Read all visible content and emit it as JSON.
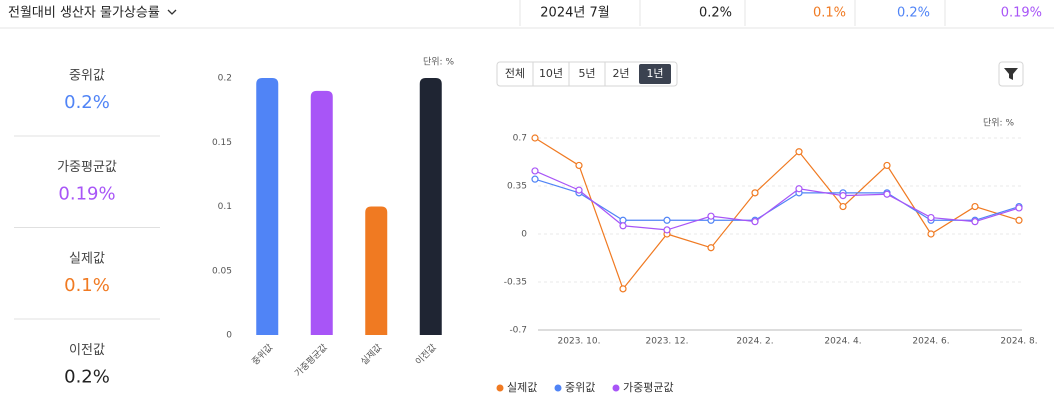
{
  "header": {
    "title": "전월대비 생산자 물가상승률",
    "period": "2024년 7월",
    "values": [
      "0.2%",
      "0.1%",
      "0.2%",
      "0.19%"
    ]
  },
  "stats": [
    {
      "label": "중위값",
      "value": "0.2%"
    },
    {
      "label": "가중평균값",
      "value": "0.19%"
    },
    {
      "label": "실제값",
      "value": "0.1%"
    },
    {
      "label": "이전값",
      "value": "0.2%"
    }
  ],
  "controls": {
    "ranges": [
      "전체",
      "10년",
      "5년",
      "2년",
      "1년"
    ],
    "selected": 4
  },
  "chart_data": [
    {
      "type": "bar",
      "unit_label": "단위: %",
      "categories": [
        "중위값",
        "가중평균값",
        "실제값",
        "이전값"
      ],
      "values": [
        0.2,
        0.19,
        0.1,
        0.2
      ],
      "colors": [
        "#5084f6",
        "#a855f7",
        "#f07a22",
        "#1f2533"
      ],
      "ylim": [
        0,
        0.2
      ],
      "yticks": [
        0,
        0.05,
        0.1,
        0.15,
        0.2
      ]
    },
    {
      "type": "line",
      "unit_label": "단위: %",
      "categories": [
        null,
        "2023. 10.",
        null,
        "2023. 12.",
        null,
        "2024. 2.",
        null,
        "2024. 4.",
        null,
        "2024. 6.",
        null,
        "2024. 8."
      ],
      "series": [
        {
          "name": "실제값",
          "color": "#f07a22",
          "values": [
            0.7,
            0.5,
            -0.4,
            0,
            -0.1,
            0.3,
            0.6,
            0.2,
            0.5,
            0,
            0.2,
            0.1
          ]
        },
        {
          "name": "중위값",
          "color": "#5084f6",
          "values": [
            0.4,
            0.3,
            0.1,
            0.1,
            0.1,
            0.1,
            0.3,
            0.3,
            0.3,
            0.1,
            0.1,
            0.2
          ]
        },
        {
          "name": "가중평균값",
          "color": "#a855f7",
          "values": [
            0.46,
            0.32,
            0.06,
            0.03,
            0.13,
            0.09,
            0.33,
            0.28,
            0.29,
            0.12,
            0.09,
            0.19
          ]
        }
      ],
      "ylim": [
        -0.7,
        0.7
      ],
      "yticks": [
        -0.7,
        -0.35,
        0,
        0.35,
        0.7
      ],
      "grid": true
    }
  ]
}
